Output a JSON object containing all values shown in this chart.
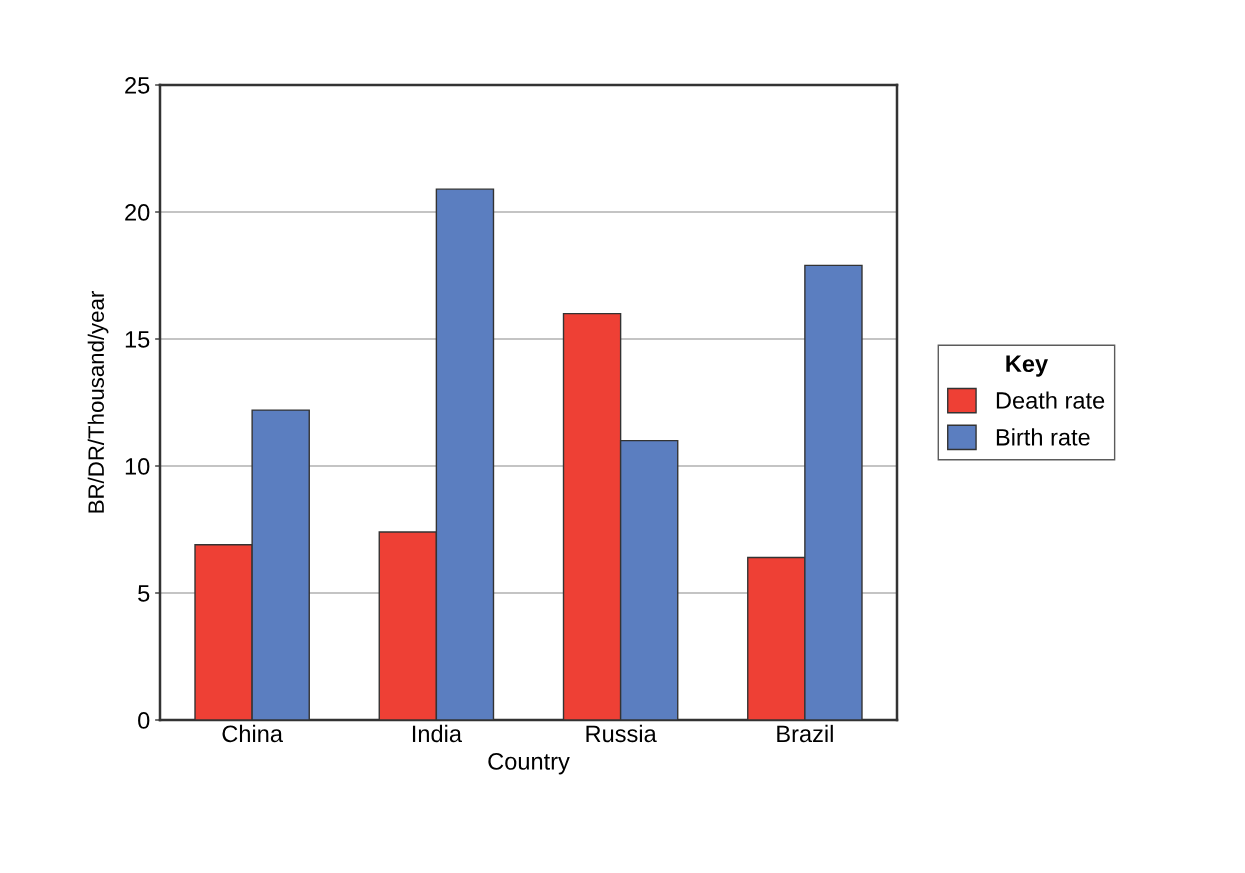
{
  "chart_data": {
    "type": "bar",
    "xlabel": "Country",
    "ylabel": "BR/DR/Thousand/year",
    "legend_title": "Key",
    "categories": [
      "China",
      "India",
      "Russia",
      "Brazil"
    ],
    "series": [
      {
        "name": "Death rate",
        "color": "#ee4035",
        "values": [
          6.9,
          7.4,
          16.0,
          6.4
        ]
      },
      {
        "name": "Birth rate",
        "color": "#5b7ec0",
        "values": [
          12.2,
          20.9,
          11.0,
          17.9
        ]
      }
    ],
    "ylim": [
      0,
      25
    ],
    "yticks": [
      0,
      5,
      10,
      15,
      20,
      25
    ],
    "grid": "y",
    "legend": "right"
  }
}
